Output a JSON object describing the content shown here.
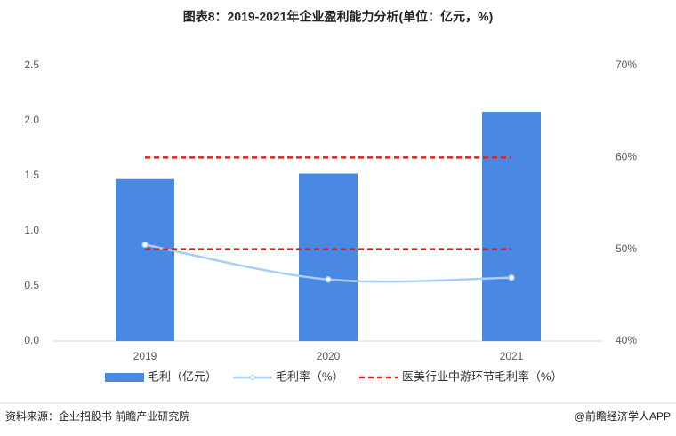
{
  "chart_data": {
    "type": "bar_line",
    "title": "图表8：2019-2021年企业盈利能力分析(单位：亿元，%)",
    "categories": [
      "2019",
      "2020",
      "2021"
    ],
    "series": [
      {
        "name": "毛利（亿元）",
        "color": "#4a89e3",
        "values": [
          1.47,
          1.52,
          2.08
        ]
      },
      {
        "name": "毛利率（%）",
        "color": "#a9cdf3",
        "values": [
          50.5,
          46.7,
          46.9
        ],
        "axis": "y2"
      }
    ],
    "reference_lines": {
      "name": "医美行业中游环节毛利率（%）",
      "color": "#e3201b",
      "values": [
        60,
        50
      ],
      "axis": "y2"
    },
    "ylim": [
      0,
      2.5
    ],
    "yticks": [
      {
        "value": 0,
        "label": "0.0"
      },
      0.5,
      {
        "value": 1,
        "label": "1.0"
      },
      1.5,
      {
        "value": 2,
        "label": "2.0"
      },
      2.5
    ],
    "y2lim": [
      40,
      70
    ],
    "y2ticks": [
      {
        "value": 40,
        "label": "40%"
      },
      {
        "value": 50,
        "label": "50%"
      },
      {
        "value": 60,
        "label": "60%"
      },
      {
        "value": 70,
        "label": "70%"
      }
    ],
    "source": "资料来源：企业招股书 前瞻产业研究院",
    "credit": "@前瞻经济学人APP"
  }
}
